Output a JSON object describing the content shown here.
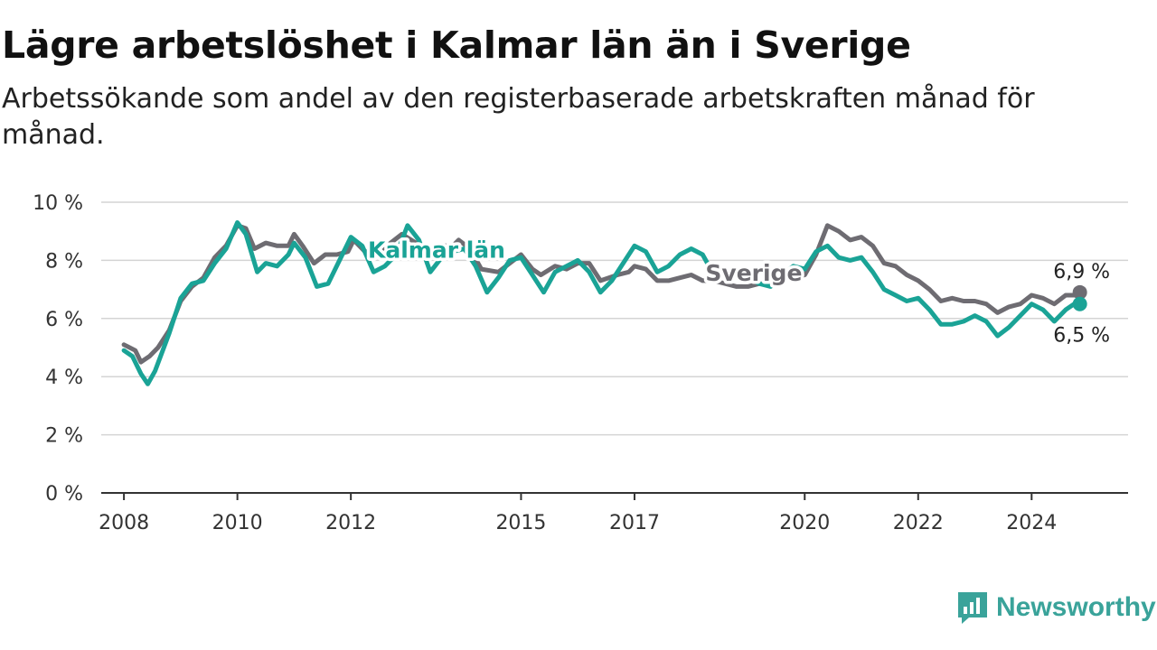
{
  "header": {
    "title": "Lägre arbetslöshet i Kalmar län än i Sverige",
    "subtitle": "Arbetssökande som andel av den registerbaserade arbetskraften månad för månad."
  },
  "brand": {
    "name": "Newsworthy",
    "icon": "newsworthy-logo-icon",
    "color": "#3aa39a"
  },
  "chart_data": {
    "type": "line",
    "title": "Lägre arbetslöshet i Kalmar län än i Sverige",
    "subtitle": "Arbetssökande som andel av den registerbaserade arbetskraften månad för månad.",
    "xlabel": "",
    "ylabel": "",
    "xlim": [
      2007.6,
      2025.7
    ],
    "ylim": [
      0,
      10
    ],
    "x_ticks": [
      2008,
      2010,
      2012,
      2015,
      2017,
      2020,
      2022,
      2024
    ],
    "x_tick_labels": [
      "2008",
      "2010",
      "2012",
      "2015",
      "2017",
      "2020",
      "2022",
      "2024"
    ],
    "y_ticks": [
      0,
      2,
      4,
      6,
      8,
      10
    ],
    "y_tick_labels": [
      "0 %",
      "2 %",
      "4 %",
      "6 %",
      "8 %",
      "10 %"
    ],
    "grid": "horizontal",
    "legend": "direct labels on lines",
    "series": [
      {
        "name": "Sverige",
        "color": "#6e6c72",
        "end_label": "6,9 %",
        "points": [
          [
            2008.0,
            5.1
          ],
          [
            2008.2,
            4.9
          ],
          [
            2008.3,
            4.5
          ],
          [
            2008.45,
            4.7
          ],
          [
            2008.6,
            5.0
          ],
          [
            2008.8,
            5.6
          ],
          [
            2009.0,
            6.6
          ],
          [
            2009.2,
            7.1
          ],
          [
            2009.4,
            7.4
          ],
          [
            2009.6,
            8.1
          ],
          [
            2009.8,
            8.5
          ],
          [
            2010.0,
            9.2
          ],
          [
            2010.15,
            9.1
          ],
          [
            2010.3,
            8.4
          ],
          [
            2010.5,
            8.6
          ],
          [
            2010.7,
            8.5
          ],
          [
            2010.9,
            8.5
          ],
          [
            2011.0,
            8.9
          ],
          [
            2011.15,
            8.5
          ],
          [
            2011.35,
            7.9
          ],
          [
            2011.55,
            8.2
          ],
          [
            2011.75,
            8.2
          ],
          [
            2011.95,
            8.3
          ],
          [
            2012.05,
            8.7
          ],
          [
            2012.25,
            8.3
          ],
          [
            2012.5,
            8.3
          ],
          [
            2012.7,
            8.6
          ],
          [
            2012.9,
            8.9
          ],
          [
            2013.15,
            8.6
          ],
          [
            2013.4,
            8.3
          ],
          [
            2013.6,
            8.5
          ],
          [
            2013.8,
            8.5
          ],
          [
            2013.9,
            8.7
          ],
          [
            2014.1,
            8.4
          ],
          [
            2014.3,
            7.7
          ],
          [
            2014.6,
            7.6
          ],
          [
            2014.8,
            7.9
          ],
          [
            2015.0,
            8.2
          ],
          [
            2015.2,
            7.7
          ],
          [
            2015.35,
            7.5
          ],
          [
            2015.6,
            7.8
          ],
          [
            2015.8,
            7.7
          ],
          [
            2016.0,
            7.9
          ],
          [
            2016.2,
            7.9
          ],
          [
            2016.4,
            7.3
          ],
          [
            2016.7,
            7.5
          ],
          [
            2016.9,
            7.6
          ],
          [
            2017.0,
            7.8
          ],
          [
            2017.2,
            7.7
          ],
          [
            2017.4,
            7.3
          ],
          [
            2017.6,
            7.3
          ],
          [
            2017.8,
            7.4
          ],
          [
            2018.0,
            7.5
          ],
          [
            2018.2,
            7.3
          ],
          [
            2018.4,
            7.3
          ],
          [
            2018.6,
            7.2
          ],
          [
            2018.8,
            7.1
          ],
          [
            2019.0,
            7.1
          ],
          [
            2019.2,
            7.2
          ],
          [
            2019.4,
            7.2
          ],
          [
            2019.6,
            7.3
          ],
          [
            2019.8,
            7.4
          ],
          [
            2020.0,
            7.5
          ],
          [
            2020.2,
            8.2
          ],
          [
            2020.4,
            9.2
          ],
          [
            2020.6,
            9.0
          ],
          [
            2020.8,
            8.7
          ],
          [
            2021.0,
            8.8
          ],
          [
            2021.2,
            8.5
          ],
          [
            2021.4,
            7.9
          ],
          [
            2021.6,
            7.8
          ],
          [
            2021.8,
            7.5
          ],
          [
            2022.0,
            7.3
          ],
          [
            2022.2,
            7.0
          ],
          [
            2022.4,
            6.6
          ],
          [
            2022.6,
            6.7
          ],
          [
            2022.8,
            6.6
          ],
          [
            2023.0,
            6.6
          ],
          [
            2023.2,
            6.5
          ],
          [
            2023.4,
            6.2
          ],
          [
            2023.6,
            6.4
          ],
          [
            2023.8,
            6.5
          ],
          [
            2024.0,
            6.8
          ],
          [
            2024.2,
            6.7
          ],
          [
            2024.4,
            6.5
          ],
          [
            2024.6,
            6.8
          ],
          [
            2024.75,
            6.8
          ],
          [
            2024.85,
            6.9
          ]
        ]
      },
      {
        "name": "Kalmar län",
        "color": "#1aa396",
        "end_label": "6,5 %",
        "points": [
          [
            2008.0,
            4.9
          ],
          [
            2008.15,
            4.7
          ],
          [
            2008.3,
            4.1
          ],
          [
            2008.42,
            3.75
          ],
          [
            2008.55,
            4.2
          ],
          [
            2008.8,
            5.5
          ],
          [
            2009.0,
            6.7
          ],
          [
            2009.2,
            7.2
          ],
          [
            2009.4,
            7.3
          ],
          [
            2009.6,
            7.9
          ],
          [
            2009.8,
            8.4
          ],
          [
            2010.0,
            9.3
          ],
          [
            2010.15,
            8.9
          ],
          [
            2010.35,
            7.6
          ],
          [
            2010.5,
            7.9
          ],
          [
            2010.7,
            7.8
          ],
          [
            2010.9,
            8.2
          ],
          [
            2011.0,
            8.6
          ],
          [
            2011.2,
            8.1
          ],
          [
            2011.4,
            7.1
          ],
          [
            2011.6,
            7.2
          ],
          [
            2011.85,
            8.2
          ],
          [
            2012.0,
            8.8
          ],
          [
            2012.2,
            8.5
          ],
          [
            2012.4,
            7.6
          ],
          [
            2012.6,
            7.8
          ],
          [
            2012.8,
            8.2
          ],
          [
            2013.0,
            9.2
          ],
          [
            2013.2,
            8.7
          ],
          [
            2013.4,
            7.6
          ],
          [
            2013.6,
            8.1
          ],
          [
            2013.8,
            8.3
          ],
          [
            2014.0,
            8.4
          ],
          [
            2014.2,
            7.8
          ],
          [
            2014.4,
            6.9
          ],
          [
            2014.6,
            7.4
          ],
          [
            2014.8,
            8.0
          ],
          [
            2015.0,
            8.1
          ],
          [
            2015.2,
            7.5
          ],
          [
            2015.4,
            6.9
          ],
          [
            2015.6,
            7.6
          ],
          [
            2015.8,
            7.8
          ],
          [
            2016.0,
            8.0
          ],
          [
            2016.2,
            7.6
          ],
          [
            2016.4,
            6.9
          ],
          [
            2016.6,
            7.3
          ],
          [
            2016.8,
            7.9
          ],
          [
            2017.0,
            8.5
          ],
          [
            2017.2,
            8.3
          ],
          [
            2017.4,
            7.6
          ],
          [
            2017.6,
            7.8
          ],
          [
            2017.8,
            8.2
          ],
          [
            2018.0,
            8.4
          ],
          [
            2018.2,
            8.2
          ],
          [
            2018.4,
            7.5
          ],
          [
            2018.6,
            7.7
          ],
          [
            2018.8,
            7.6
          ],
          [
            2019.0,
            7.4
          ],
          [
            2019.2,
            7.2
          ],
          [
            2019.4,
            7.1
          ],
          [
            2019.6,
            7.5
          ],
          [
            2019.8,
            7.8
          ],
          [
            2020.0,
            7.7
          ],
          [
            2020.2,
            8.3
          ],
          [
            2020.4,
            8.5
          ],
          [
            2020.6,
            8.1
          ],
          [
            2020.8,
            8.0
          ],
          [
            2021.0,
            8.1
          ],
          [
            2021.2,
            7.6
          ],
          [
            2021.4,
            7.0
          ],
          [
            2021.6,
            6.8
          ],
          [
            2021.8,
            6.6
          ],
          [
            2022.0,
            6.7
          ],
          [
            2022.2,
            6.3
          ],
          [
            2022.4,
            5.8
          ],
          [
            2022.6,
            5.8
          ],
          [
            2022.8,
            5.9
          ],
          [
            2023.0,
            6.1
          ],
          [
            2023.2,
            5.9
          ],
          [
            2023.4,
            5.4
          ],
          [
            2023.6,
            5.7
          ],
          [
            2023.8,
            6.1
          ],
          [
            2024.0,
            6.5
          ],
          [
            2024.2,
            6.3
          ],
          [
            2024.4,
            5.9
          ],
          [
            2024.6,
            6.3
          ],
          [
            2024.75,
            6.5
          ],
          [
            2024.85,
            6.5
          ]
        ]
      }
    ]
  }
}
